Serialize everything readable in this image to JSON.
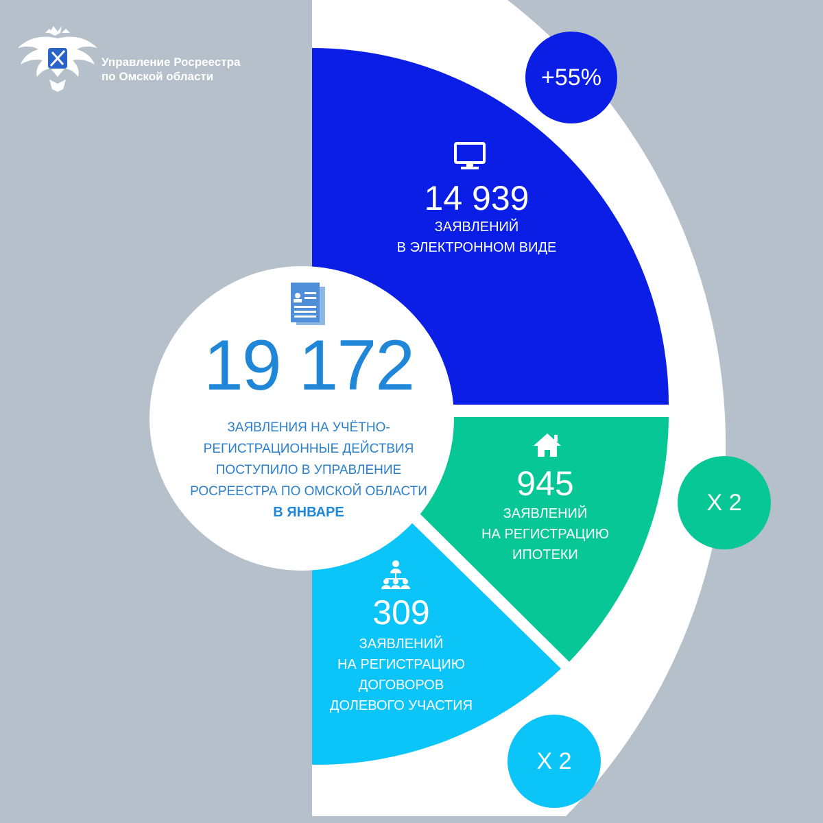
{
  "logo": {
    "line1": "Управление Росреестра",
    "line2": "по Омской области"
  },
  "total": {
    "value": "19 172",
    "line1": "заявления на учётно-",
    "line2": "регистрационные действия",
    "line3": "поступило в Управление",
    "line4": "Росреестра по Омской области",
    "line5": "в январе"
  },
  "segments": [
    {
      "value": "14 939",
      "line1": "заявлений",
      "line2": "в электронном виде",
      "line3": "",
      "line4": "",
      "icon": "monitor-icon",
      "color": "#0a1ee6"
    },
    {
      "value": "945",
      "line1": "заявлений",
      "line2": "на регистрацию",
      "line3": "ипотеки",
      "line4": "",
      "icon": "house-icon",
      "color": "#06c795"
    },
    {
      "value": "309",
      "line1": "заявлений",
      "line2": "на регистрацию",
      "line3": "договоров",
      "line4": "долевого участия",
      "icon": "people-network-icon",
      "color": "#0bc4f8"
    }
  ],
  "badges": [
    {
      "text": "+55%",
      "color": "#0a1ee6"
    },
    {
      "text": "X 2",
      "color": "#06c795"
    },
    {
      "text": "X 2",
      "color": "#0bc4f8"
    }
  ],
  "chart_data": {
    "type": "pie",
    "categories": [
      "в электронном виде",
      "на регистрацию ипотеки",
      "на регистрацию договоров долевого участия"
    ],
    "values": [
      14939,
      945,
      309
    ],
    "total": 19172,
    "title": "",
    "colors": [
      "#0a1ee6",
      "#06c795",
      "#0bc4f8"
    ]
  },
  "colors": {
    "background": "#b5c0ca",
    "ring": "#ffffff",
    "accent_text": "#1f86d8"
  }
}
